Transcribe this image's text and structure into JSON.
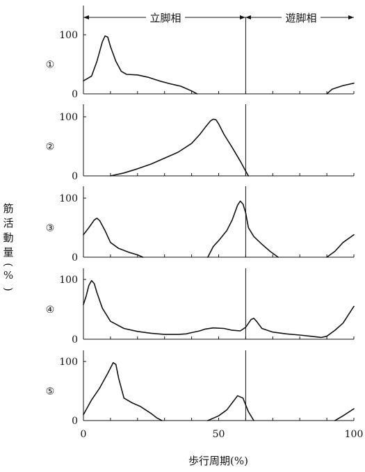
{
  "chart_data": {
    "type": "line",
    "xlabel": "歩行周期(%)",
    "ylabel": "筋活動量(%)",
    "xlim": [
      0,
      100
    ],
    "ylim": [
      0,
      100
    ],
    "x_ticks": [
      0,
      50,
      100
    ],
    "y_ticks": [
      0,
      100
    ],
    "phase_divider_x": 60,
    "phases": [
      {
        "label": "立脚相",
        "from": 0,
        "to": 60
      },
      {
        "label": "遊脚相",
        "from": 60,
        "to": 100
      }
    ],
    "series": [
      {
        "name": "①",
        "segments": [
          [
            [
              0,
              22
            ],
            [
              3,
              30
            ],
            [
              5,
              55
            ],
            [
              7,
              88
            ],
            [
              8,
              98
            ],
            [
              9,
              96
            ],
            [
              10,
              80
            ],
            [
              12,
              55
            ],
            [
              14,
              38
            ],
            [
              16,
              33
            ],
            [
              20,
              32
            ],
            [
              24,
              28
            ],
            [
              28,
              22
            ],
            [
              32,
              17
            ],
            [
              36,
              13
            ],
            [
              40,
              5
            ],
            [
              42,
              0
            ]
          ],
          [
            [
              90,
              0
            ],
            [
              92,
              8
            ],
            [
              96,
              14
            ],
            [
              100,
              18
            ]
          ]
        ]
      },
      {
        "name": "②",
        "segments": [
          [
            [
              10,
              0
            ],
            [
              15,
              5
            ],
            [
              20,
              12
            ],
            [
              25,
              20
            ],
            [
              30,
              30
            ],
            [
              35,
              40
            ],
            [
              40,
              55
            ],
            [
              43,
              70
            ],
            [
              45,
              82
            ],
            [
              47,
              93
            ],
            [
              48,
              96
            ],
            [
              49,
              95
            ],
            [
              50,
              88
            ],
            [
              52,
              70
            ],
            [
              55,
              48
            ],
            [
              58,
              25
            ],
            [
              60,
              8
            ],
            [
              61,
              0
            ]
          ]
        ]
      },
      {
        "name": "③",
        "segments": [
          [
            [
              0,
              38
            ],
            [
              2,
              50
            ],
            [
              4,
              63
            ],
            [
              5,
              66
            ],
            [
              6,
              62
            ],
            [
              8,
              45
            ],
            [
              10,
              25
            ],
            [
              13,
              15
            ],
            [
              17,
              8
            ],
            [
              20,
              4
            ],
            [
              22,
              0
            ]
          ],
          [
            [
              46,
              0
            ],
            [
              48,
              18
            ],
            [
              50,
              28
            ],
            [
              53,
              45
            ],
            [
              55,
              63
            ],
            [
              57,
              88
            ],
            [
              58,
              95
            ],
            [
              59,
              90
            ],
            [
              60,
              75
            ],
            [
              61,
              50
            ],
            [
              63,
              35
            ],
            [
              66,
              22
            ],
            [
              69,
              10
            ],
            [
              72,
              0
            ]
          ],
          [
            [
              90,
              0
            ],
            [
              93,
              10
            ],
            [
              96,
              25
            ],
            [
              100,
              38
            ]
          ]
        ]
      },
      {
        "name": "④",
        "segments": [
          [
            [
              0,
              58
            ],
            [
              1,
              72
            ],
            [
              2,
              90
            ],
            [
              3,
              98
            ],
            [
              4,
              93
            ],
            [
              5,
              78
            ],
            [
              7,
              52
            ],
            [
              10,
              30
            ],
            [
              15,
              18
            ],
            [
              20,
              13
            ],
            [
              25,
              10
            ],
            [
              30,
              8
            ],
            [
              35,
              8
            ],
            [
              38,
              9
            ],
            [
              40,
              11
            ],
            [
              43,
              14
            ],
            [
              45,
              17
            ],
            [
              48,
              19
            ],
            [
              52,
              18
            ],
            [
              55,
              15
            ],
            [
              58,
              14
            ],
            [
              60,
              20
            ],
            [
              62,
              33
            ],
            [
              63,
              35
            ],
            [
              64,
              30
            ],
            [
              66,
              18
            ],
            [
              70,
              12
            ],
            [
              75,
              9
            ],
            [
              80,
              7
            ],
            [
              84,
              5
            ],
            [
              88,
              3
            ],
            [
              90,
              5
            ],
            [
              93,
              15
            ],
            [
              96,
              27
            ],
            [
              100,
              55
            ]
          ]
        ]
      },
      {
        "name": "⑤",
        "segments": [
          [
            [
              0,
              10
            ],
            [
              3,
              35
            ],
            [
              6,
              55
            ],
            [
              9,
              80
            ],
            [
              11,
              98
            ],
            [
              12,
              95
            ],
            [
              13,
              72
            ],
            [
              15,
              38
            ],
            [
              18,
              30
            ],
            [
              21,
              24
            ],
            [
              25,
              12
            ],
            [
              27,
              5
            ],
            [
              29,
              0
            ]
          ],
          [
            [
              46,
              0
            ],
            [
              50,
              8
            ],
            [
              53,
              18
            ],
            [
              55,
              30
            ],
            [
              57,
              42
            ],
            [
              59,
              38
            ],
            [
              61,
              15
            ],
            [
              63,
              0
            ]
          ],
          [
            [
              93,
              0
            ],
            [
              96,
              8
            ],
            [
              100,
              20
            ]
          ]
        ]
      }
    ]
  }
}
